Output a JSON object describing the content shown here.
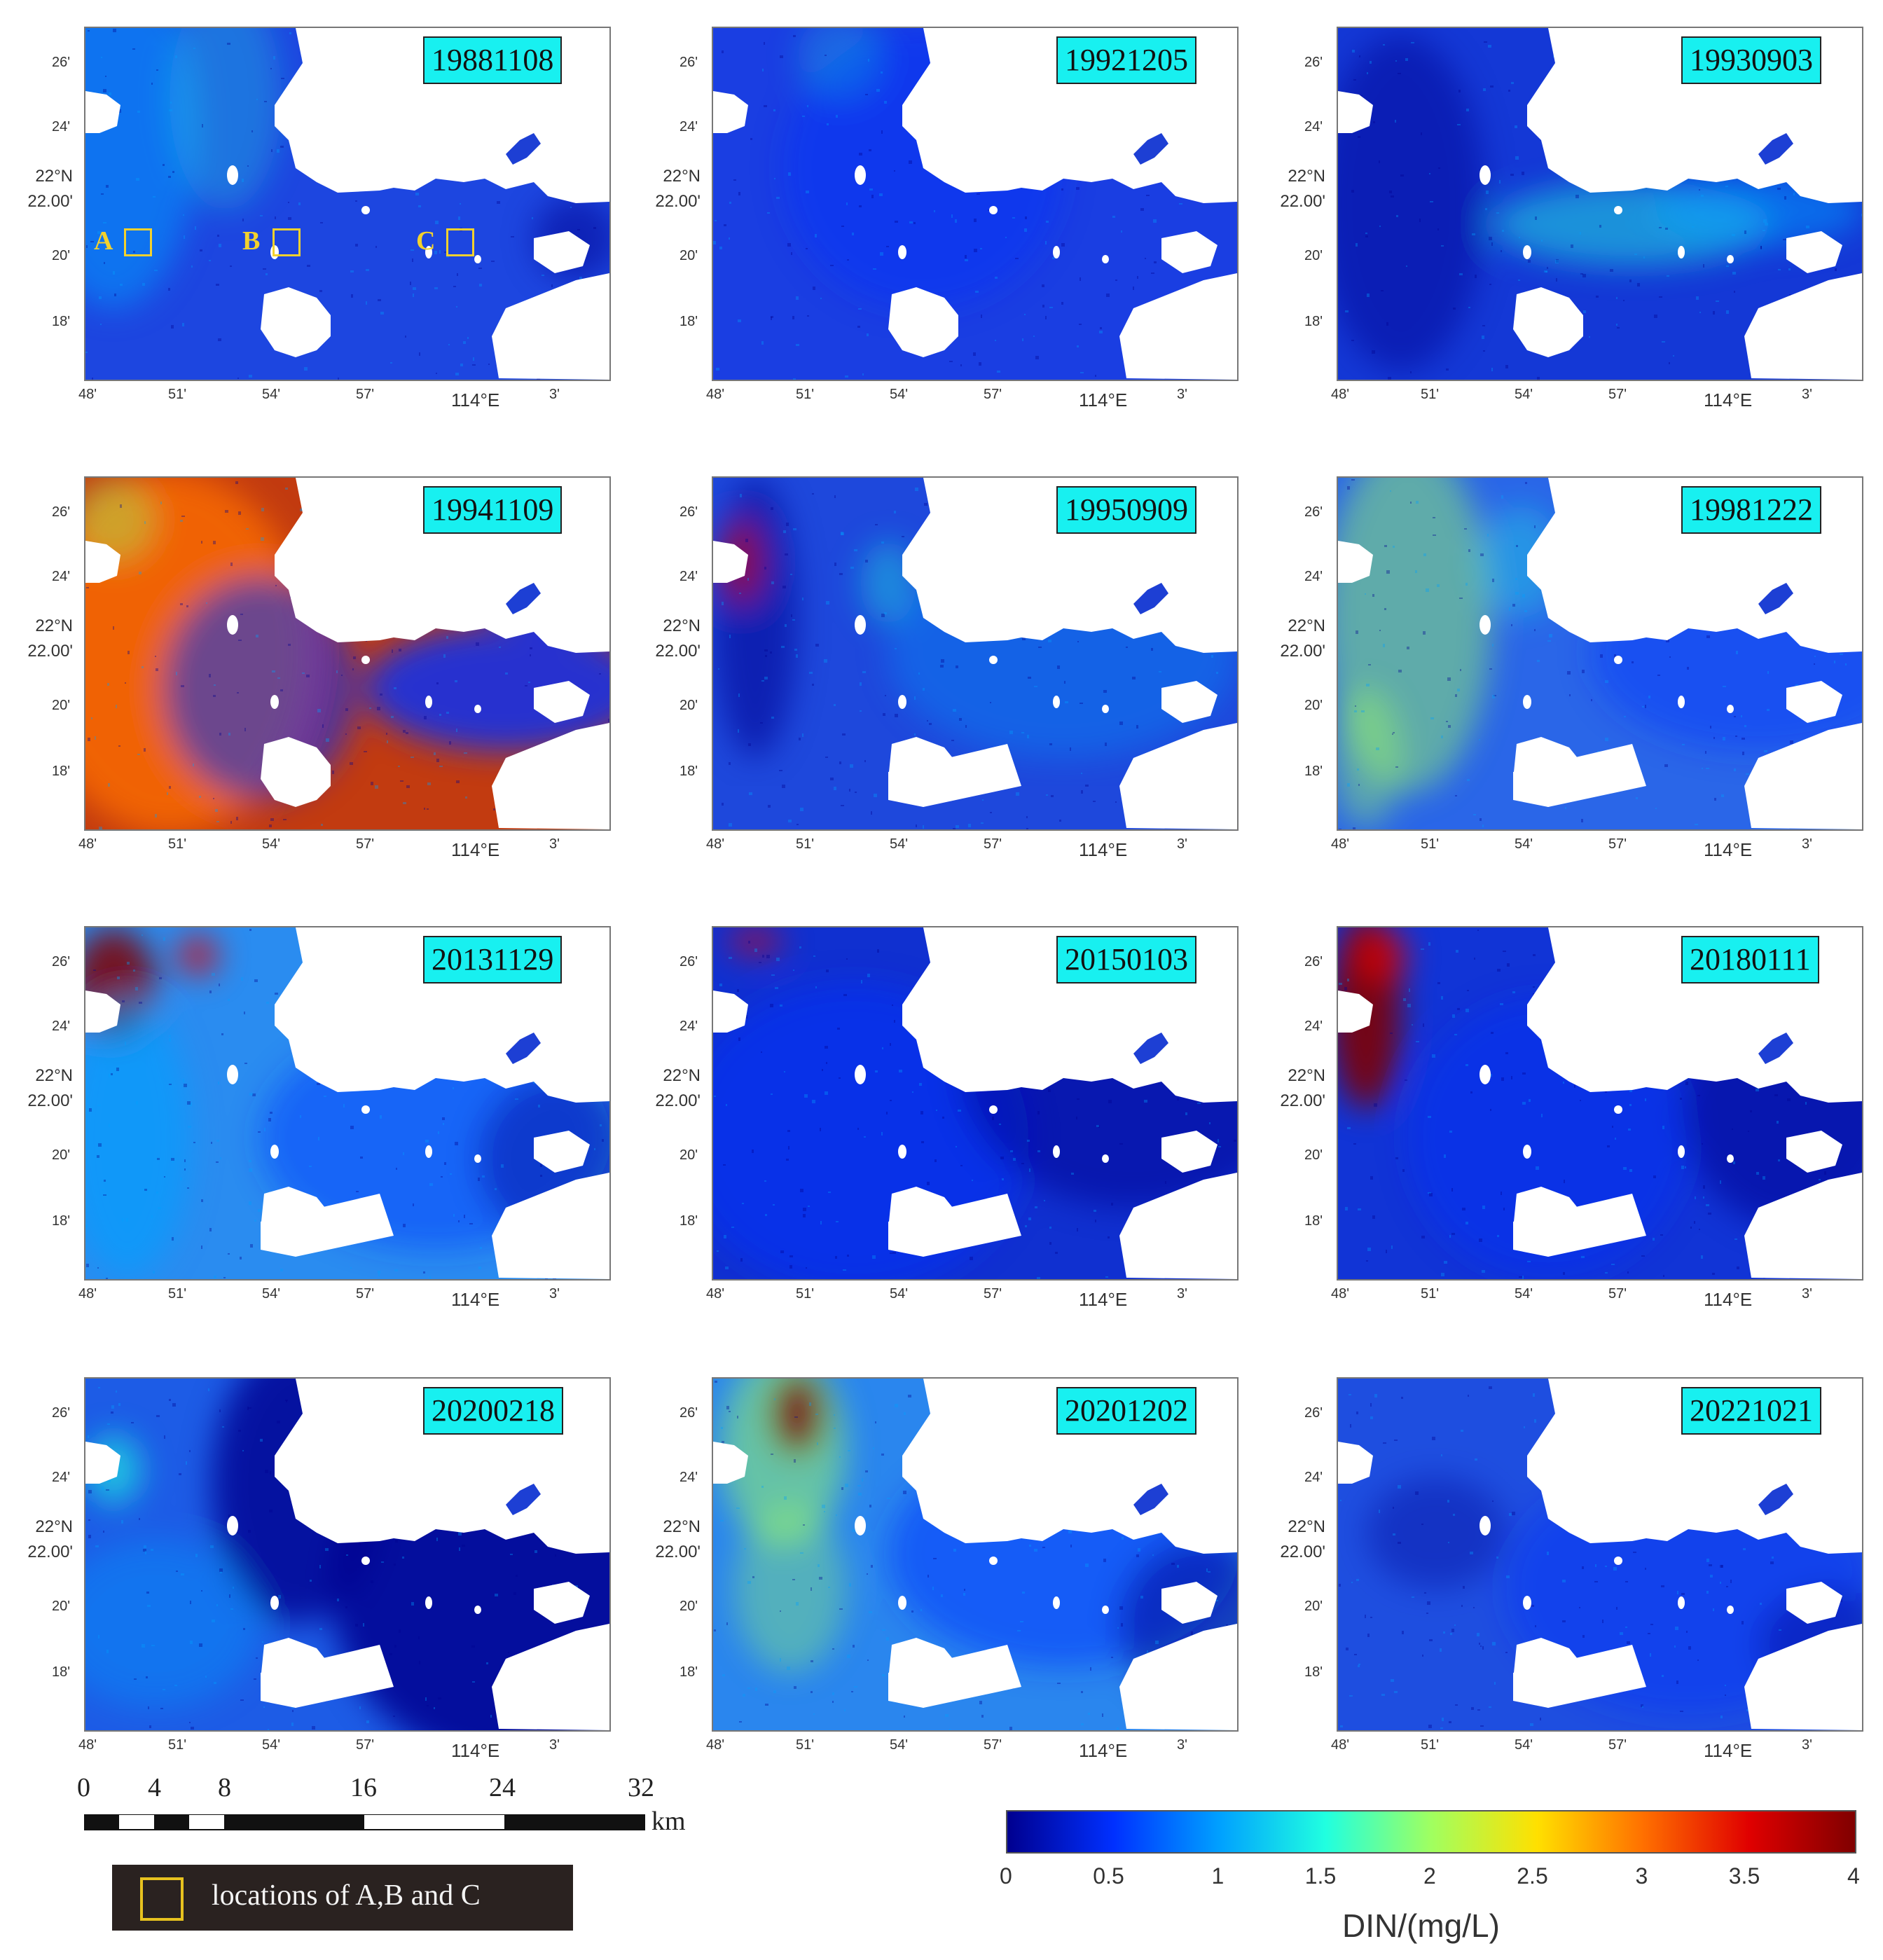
{
  "colormap": [
    "#00008f",
    "#0030ff",
    "#00a0ff",
    "#20ffe0",
    "#a0ff60",
    "#ffe000",
    "#ff7000",
    "#e00000",
    "#800000"
  ],
  "panels": [
    {
      "date": "19881108",
      "locations": [
        "A",
        "B",
        "C"
      ]
    },
    {
      "date": "19921205"
    },
    {
      "date": "19930903"
    },
    {
      "date": "19941109"
    },
    {
      "date": "19950909"
    },
    {
      "date": "19981222"
    },
    {
      "date": "20131129"
    },
    {
      "date": "20150103"
    },
    {
      "date": "20180111"
    },
    {
      "date": "20200218"
    },
    {
      "date": "20201202"
    },
    {
      "date": "20221021"
    }
  ],
  "axes": {
    "y_ticks": [
      "26'",
      "24'",
      "22°N",
      "22.00'",
      "20'",
      "18'"
    ],
    "x_ticks": [
      "48'",
      "51'",
      "54'",
      "57'",
      "114°E",
      "3'"
    ]
  },
  "scalebar": {
    "ticks": [
      "0",
      "4",
      "8",
      "16",
      "24",
      "32"
    ],
    "unit": "km"
  },
  "legend": {
    "label": "locations of A,B and C"
  },
  "colorbar": {
    "ticks": [
      "0",
      "0.5",
      "1",
      "1.5",
      "2",
      "2.5",
      "3",
      "3.5",
      "4"
    ],
    "title": "DIN/(mg/L)",
    "min": 0,
    "max": 4
  }
}
